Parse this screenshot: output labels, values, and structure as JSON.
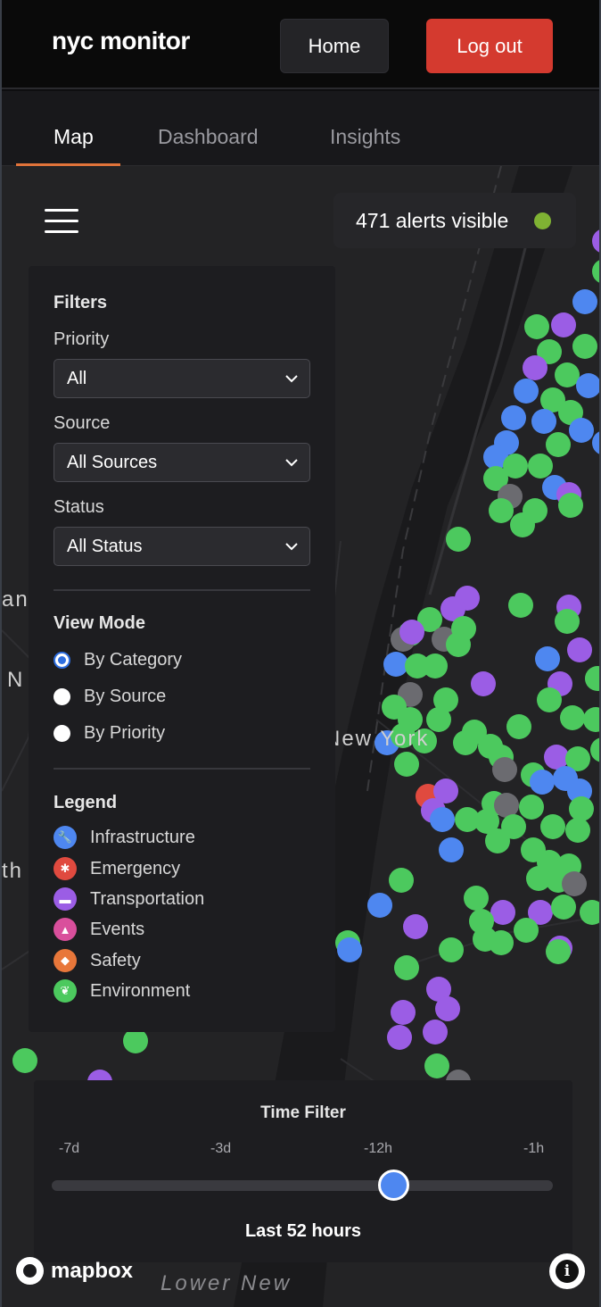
{
  "header": {
    "brand": "nyc monitor",
    "home_label": "Home",
    "logout_label": "Log out",
    "logout_color": "#d43a2f"
  },
  "tabs": [
    {
      "label": "Map",
      "active": true
    },
    {
      "label": "Dashboard",
      "active": false
    },
    {
      "label": "Insights",
      "active": false
    }
  ],
  "map": {
    "alerts_count_text": "471 alerts visible",
    "status_dot_color": "#7fb233",
    "city_label": "New York",
    "bottom_label": "Lower New",
    "edge_labels": [
      "ang",
      "N",
      "th"
    ],
    "attribution": "mapbox"
  },
  "filters": {
    "title": "Filters",
    "priority": {
      "label": "Priority",
      "value": "All"
    },
    "source": {
      "label": "Source",
      "value": "All Sources"
    },
    "status": {
      "label": "Status",
      "value": "All Status"
    }
  },
  "view_mode": {
    "title": "View Mode",
    "options": [
      {
        "label": "By Category",
        "checked": true
      },
      {
        "label": "By Source",
        "checked": false
      },
      {
        "label": "By Priority",
        "checked": false
      }
    ]
  },
  "legend": {
    "title": "Legend",
    "items": [
      {
        "label": "Infrastructure",
        "color": "#4e87f0",
        "icon": "wrench-icon"
      },
      {
        "label": "Emergency",
        "color": "#e04a3f",
        "icon": "siren-icon"
      },
      {
        "label": "Transportation",
        "color": "#9b5de5",
        "icon": "car-icon"
      },
      {
        "label": "Events",
        "color": "#d94f9c",
        "icon": "tent-icon"
      },
      {
        "label": "Safety",
        "color": "#e8773a",
        "icon": "shield-icon"
      },
      {
        "label": "Environment",
        "color": "#4cc95e",
        "icon": "leaf-icon"
      }
    ]
  },
  "time_filter": {
    "title": "Time Filter",
    "ticks": [
      "-7d",
      "-3d",
      "-12h",
      "-1h"
    ],
    "current_label": "Last 52 hours"
  }
}
